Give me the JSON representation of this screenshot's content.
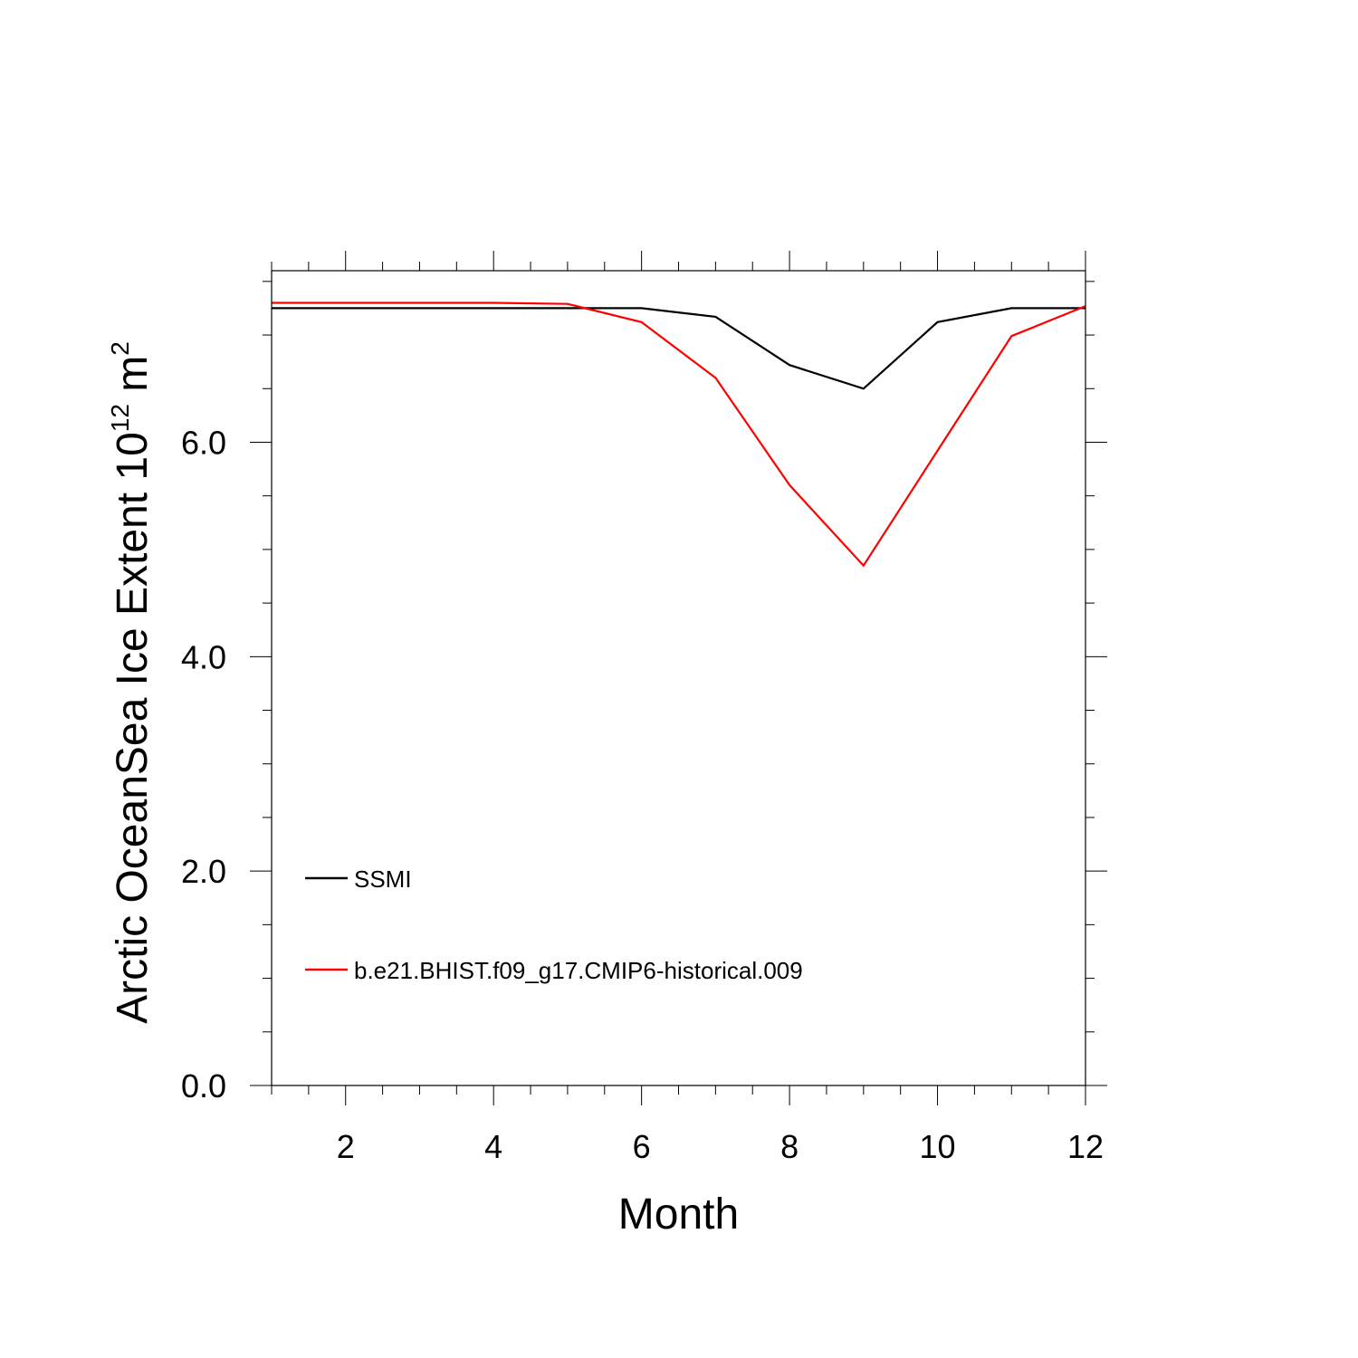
{
  "chart_data": {
    "type": "line",
    "xlabel": "Month",
    "ylabel_main": "Arctic OceanSea Ice Extent 10",
    "ylabel_exp": "12",
    "ylabel_unit": " m",
    "ylabel_unit_exp": "2",
    "xlim": [
      1,
      12
    ],
    "ylim": [
      0,
      7.6
    ],
    "x_ticks_major": [
      2,
      4,
      6,
      8,
      10,
      12
    ],
    "x_tick_labels": [
      "2",
      "4",
      "6",
      "8",
      "10",
      "12"
    ],
    "y_ticks_major": [
      0,
      2,
      4,
      6
    ],
    "y_tick_labels": [
      "0.0",
      "2.0",
      "4.0",
      "6.0"
    ],
    "x_minor_step": 0.5,
    "y_minor_step": 0.5,
    "grid": false,
    "legend_position": "lower-left",
    "x": [
      1,
      2,
      3,
      4,
      5,
      6,
      7,
      8,
      9,
      10,
      11,
      12
    ],
    "series": [
      {
        "name": "SSMI",
        "color": "#000000",
        "values": [
          7.25,
          7.25,
          7.25,
          7.25,
          7.25,
          7.25,
          7.17,
          6.72,
          6.5,
          7.12,
          7.25,
          7.25
        ]
      },
      {
        "name": "b.e21.BHIST.f09_g17.CMIP6-historical.009",
        "color": "#ff0000",
        "values": [
          7.3,
          7.3,
          7.3,
          7.3,
          7.29,
          7.12,
          6.6,
          5.6,
          4.85,
          5.92,
          6.99,
          7.27
        ]
      }
    ]
  }
}
